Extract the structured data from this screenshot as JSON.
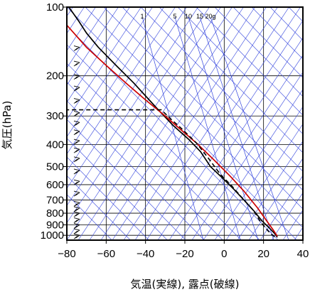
{
  "chart_data": {
    "type": "line",
    "title": "",
    "xlabel": "気温(実線), 露点(破線)",
    "ylabel": "気圧(hPa)",
    "xlim": [
      -80,
      40
    ],
    "ylim": [
      1050,
      100
    ],
    "y_scale": "log",
    "grid": true,
    "x_ticks": [
      "−80",
      "−60",
      "−40",
      "−20",
      "0",
      "20",
      "40"
    ],
    "y_ticks": [
      {
        "p": 100,
        "label": "100"
      },
      {
        "p": 200,
        "label": "200"
      },
      {
        "p": 300,
        "label": "300"
      },
      {
        "p": 400,
        "label": "400"
      },
      {
        "p": 500,
        "label": "500"
      },
      {
        "p": 600,
        "label": "600"
      },
      {
        "p": 700,
        "label": "700"
      },
      {
        "p": 800,
        "label": "800"
      },
      {
        "p": 900,
        "label": "900"
      },
      {
        "p": 1000,
        "label": "1000"
      }
    ],
    "mixing_ratio_labels": [
      "1",
      "5",
      "10",
      "15",
      "20g"
    ],
    "series": [
      {
        "name": "",
        "style": "solid",
        "color": "#000000",
        "points": [
          [
            -79,
            100
          ],
          [
            -74,
            115
          ],
          [
            -70,
            130
          ],
          [
            -64,
            150
          ],
          [
            -55,
            180
          ],
          [
            -46,
            215
          ],
          [
            -40,
            245
          ],
          [
            -33,
            285
          ],
          [
            -26,
            330
          ],
          [
            -18,
            380
          ],
          [
            -12,
            430
          ],
          [
            -7,
            500
          ],
          [
            -1,
            560
          ],
          [
            5,
            630
          ],
          [
            10,
            700
          ],
          [
            15,
            780
          ],
          [
            19,
            860
          ],
          [
            23,
            930
          ],
          [
            26,
            990
          ],
          [
            27,
            1020
          ]
        ]
      },
      {
        "name": "",
        "style": "solid",
        "color": "#cc0000",
        "points": [
          [
            -80,
            120
          ],
          [
            -70,
            150
          ],
          [
            -60,
            180
          ],
          [
            -50,
            215
          ],
          [
            -40,
            255
          ],
          [
            -30,
            300
          ],
          [
            -22,
            345
          ],
          [
            -14,
            395
          ],
          [
            -6,
            460
          ],
          [
            3,
            550
          ],
          [
            10,
            640
          ],
          [
            17,
            760
          ],
          [
            21,
            850
          ],
          [
            25,
            950
          ],
          [
            27,
            1010
          ]
        ]
      },
      {
        "name": "",
        "style": "dashed",
        "color": "#000000",
        "points": [
          [
            -81,
            282
          ],
          [
            -32,
            282
          ],
          [
            -27,
            310
          ],
          [
            -21,
            345
          ],
          [
            -14,
            395
          ],
          [
            -8,
            460
          ],
          [
            -2,
            540
          ],
          [
            4,
            610
          ],
          [
            10,
            700
          ],
          [
            15,
            780
          ],
          [
            18,
            860
          ],
          [
            21,
            930
          ],
          [
            24,
            990
          ],
          [
            26,
            1020
          ]
        ]
      }
    ]
  }
}
